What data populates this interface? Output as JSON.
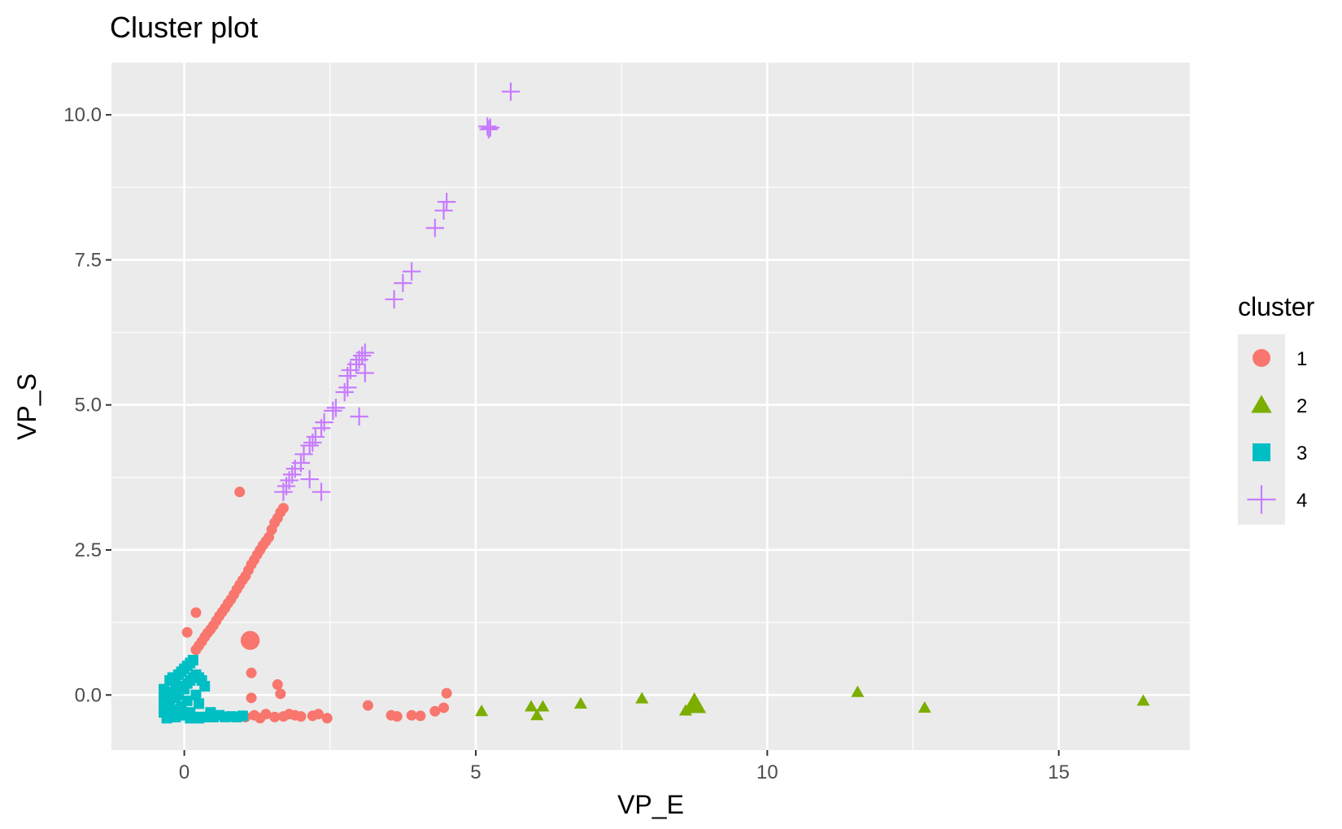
{
  "chart_data": {
    "type": "scatter",
    "title": "Cluster plot",
    "xlabel": "VP_E",
    "ylabel": "VP_S",
    "xlim": [
      -1.25,
      17.25
    ],
    "ylim": [
      -0.95,
      10.9
    ],
    "x_ticks": [
      0,
      5,
      10,
      15
    ],
    "x_tick_labels": [
      "0",
      "5",
      "10",
      "15"
    ],
    "y_ticks": [
      0,
      2.5,
      5,
      7.5,
      10
    ],
    "y_tick_labels": [
      "0.0",
      "2.5",
      "5.0",
      "7.5",
      "10.0"
    ],
    "grid": true,
    "legend": {
      "title": "cluster",
      "placement": "right",
      "entries": [
        {
          "label": "1",
          "shape": "circle",
          "color": "#F8766D"
        },
        {
          "label": "2",
          "shape": "triangle",
          "color": "#7CAE00"
        },
        {
          "label": "3",
          "shape": "square",
          "color": "#00BFC4"
        },
        {
          "label": "4",
          "shape": "plus",
          "color": "#C77CFF"
        }
      ]
    },
    "series": [
      {
        "name": "1",
        "shape": "circle",
        "color": "#F8766D",
        "points": [
          [
            0.2,
            0.78
          ],
          [
            0.25,
            0.85
          ],
          [
            0.3,
            0.92
          ],
          [
            0.35,
            1.0
          ],
          [
            0.4,
            1.07
          ],
          [
            0.45,
            1.13
          ],
          [
            0.5,
            1.2
          ],
          [
            0.55,
            1.28
          ],
          [
            0.6,
            1.36
          ],
          [
            0.65,
            1.43
          ],
          [
            0.7,
            1.5
          ],
          [
            0.75,
            1.58
          ],
          [
            0.8,
            1.65
          ],
          [
            0.85,
            1.73
          ],
          [
            0.9,
            1.82
          ],
          [
            0.95,
            1.9
          ],
          [
            1.0,
            1.98
          ],
          [
            1.05,
            2.05
          ],
          [
            1.1,
            2.15
          ],
          [
            1.15,
            2.25
          ],
          [
            1.2,
            2.33
          ],
          [
            1.25,
            2.42
          ],
          [
            1.3,
            2.5
          ],
          [
            1.35,
            2.58
          ],
          [
            1.4,
            2.65
          ],
          [
            1.45,
            2.72
          ],
          [
            1.5,
            2.85
          ],
          [
            1.55,
            2.97
          ],
          [
            1.6,
            3.05
          ],
          [
            1.65,
            3.15
          ],
          [
            1.7,
            3.22
          ],
          [
            0.95,
            3.5
          ],
          [
            0.2,
            1.42
          ],
          [
            0.05,
            1.08
          ],
          [
            1.15,
            0.38
          ],
          [
            1.15,
            -0.05
          ],
          [
            1.6,
            0.18
          ],
          [
            1.65,
            0.02
          ],
          [
            0.95,
            -0.37
          ],
          [
            1.05,
            -0.38
          ],
          [
            1.2,
            -0.35
          ],
          [
            1.3,
            -0.4
          ],
          [
            1.4,
            -0.33
          ],
          [
            1.55,
            -0.38
          ],
          [
            1.7,
            -0.37
          ],
          [
            1.8,
            -0.33
          ],
          [
            1.9,
            -0.35
          ],
          [
            2.0,
            -0.37
          ],
          [
            2.2,
            -0.36
          ],
          [
            2.3,
            -0.33
          ],
          [
            2.45,
            -0.4
          ],
          [
            3.15,
            -0.18
          ],
          [
            3.55,
            -0.35
          ],
          [
            3.65,
            -0.37
          ],
          [
            3.9,
            -0.35
          ],
          [
            4.05,
            -0.36
          ],
          [
            4.3,
            -0.28
          ],
          [
            4.45,
            -0.22
          ],
          [
            4.5,
            0.03
          ],
          [
            0.85,
            -0.38
          ]
        ],
        "large_points": [
          [
            1.13,
            0.94
          ]
        ]
      },
      {
        "name": "2",
        "shape": "triangle",
        "color": "#7CAE00",
        "points": [
          [
            5.1,
            -0.28
          ],
          [
            5.95,
            -0.2
          ],
          [
            6.05,
            -0.35
          ],
          [
            6.15,
            -0.2
          ],
          [
            6.8,
            -0.15
          ],
          [
            7.85,
            -0.06
          ],
          [
            8.6,
            -0.27
          ],
          [
            11.55,
            0.05
          ],
          [
            12.7,
            -0.22
          ],
          [
            16.45,
            -0.1
          ]
        ],
        "large_points": [
          [
            8.75,
            -0.16
          ]
        ]
      },
      {
        "name": "3",
        "shape": "square",
        "color": "#00BFC4",
        "points": [
          [
            -0.35,
            0.1
          ],
          [
            -0.35,
            -0.05
          ],
          [
            -0.35,
            -0.2
          ],
          [
            -0.35,
            -0.3
          ],
          [
            -0.3,
            0.0
          ],
          [
            -0.3,
            -0.15
          ],
          [
            -0.3,
            -0.35
          ],
          [
            -0.25,
            0.25
          ],
          [
            -0.25,
            -0.1
          ],
          [
            -0.25,
            -0.38
          ],
          [
            -0.2,
            0.3
          ],
          [
            -0.2,
            0.05
          ],
          [
            -0.2,
            -0.25
          ],
          [
            -0.15,
            0.2
          ],
          [
            -0.15,
            -0.05
          ],
          [
            -0.15,
            -0.38
          ],
          [
            -0.1,
            0.35
          ],
          [
            -0.1,
            0.0
          ],
          [
            -0.1,
            -0.3
          ],
          [
            -0.05,
            0.4
          ],
          [
            -0.05,
            0.15
          ],
          [
            -0.05,
            -0.2
          ],
          [
            0.0,
            0.45
          ],
          [
            0.0,
            0.1
          ],
          [
            0.0,
            -0.35
          ],
          [
            0.05,
            0.5
          ],
          [
            0.05,
            0.2
          ],
          [
            0.05,
            -0.1
          ],
          [
            0.1,
            0.55
          ],
          [
            0.1,
            0.25
          ],
          [
            0.1,
            -0.3
          ],
          [
            0.15,
            0.6
          ],
          [
            0.15,
            0.3
          ],
          [
            0.15,
            -0.38
          ],
          [
            0.2,
            0.35
          ],
          [
            0.2,
            0.0
          ],
          [
            0.25,
            0.3
          ],
          [
            0.25,
            -0.15
          ],
          [
            0.3,
            0.25
          ],
          [
            0.3,
            -0.38
          ],
          [
            0.35,
            0.15
          ],
          [
            0.4,
            -0.38
          ],
          [
            0.45,
            -0.3
          ],
          [
            0.5,
            -0.38
          ],
          [
            0.6,
            -0.35
          ],
          [
            0.7,
            -0.38
          ],
          [
            0.8,
            -0.37
          ],
          [
            0.9,
            -0.38
          ],
          [
            1.0,
            -0.36
          ],
          [
            -0.3,
            -0.4
          ],
          [
            0.1,
            -0.4
          ],
          [
            0.25,
            -0.4
          ]
        ],
        "large_points": []
      },
      {
        "name": "4",
        "shape": "plus",
        "color": "#C77CFF",
        "points": [
          [
            5.6,
            10.4
          ],
          [
            5.2,
            9.8
          ],
          [
            5.25,
            9.78
          ],
          [
            5.22,
            9.75
          ],
          [
            4.5,
            8.5
          ],
          [
            4.45,
            8.35
          ],
          [
            4.3,
            8.05
          ],
          [
            3.9,
            7.3
          ],
          [
            3.75,
            7.1
          ],
          [
            3.6,
            6.82
          ],
          [
            3.1,
            5.9
          ],
          [
            3.05,
            5.85
          ],
          [
            3.0,
            5.78
          ],
          [
            3.1,
            5.55
          ],
          [
            2.95,
            5.7
          ],
          [
            2.85,
            5.6
          ],
          [
            2.8,
            5.5
          ],
          [
            2.8,
            5.3
          ],
          [
            2.75,
            5.22
          ],
          [
            3.0,
            4.8
          ],
          [
            2.6,
            4.95
          ],
          [
            2.55,
            4.9
          ],
          [
            2.4,
            4.7
          ],
          [
            2.35,
            4.6
          ],
          [
            2.25,
            4.45
          ],
          [
            2.2,
            4.35
          ],
          [
            2.15,
            4.3
          ],
          [
            2.05,
            4.15
          ],
          [
            2.0,
            4.0
          ],
          [
            1.9,
            3.9
          ],
          [
            1.85,
            3.8
          ],
          [
            1.8,
            3.7
          ],
          [
            1.75,
            3.6
          ],
          [
            1.7,
            3.5
          ],
          [
            2.15,
            3.72
          ],
          [
            2.35,
            3.5
          ]
        ],
        "large_points": []
      }
    ]
  }
}
